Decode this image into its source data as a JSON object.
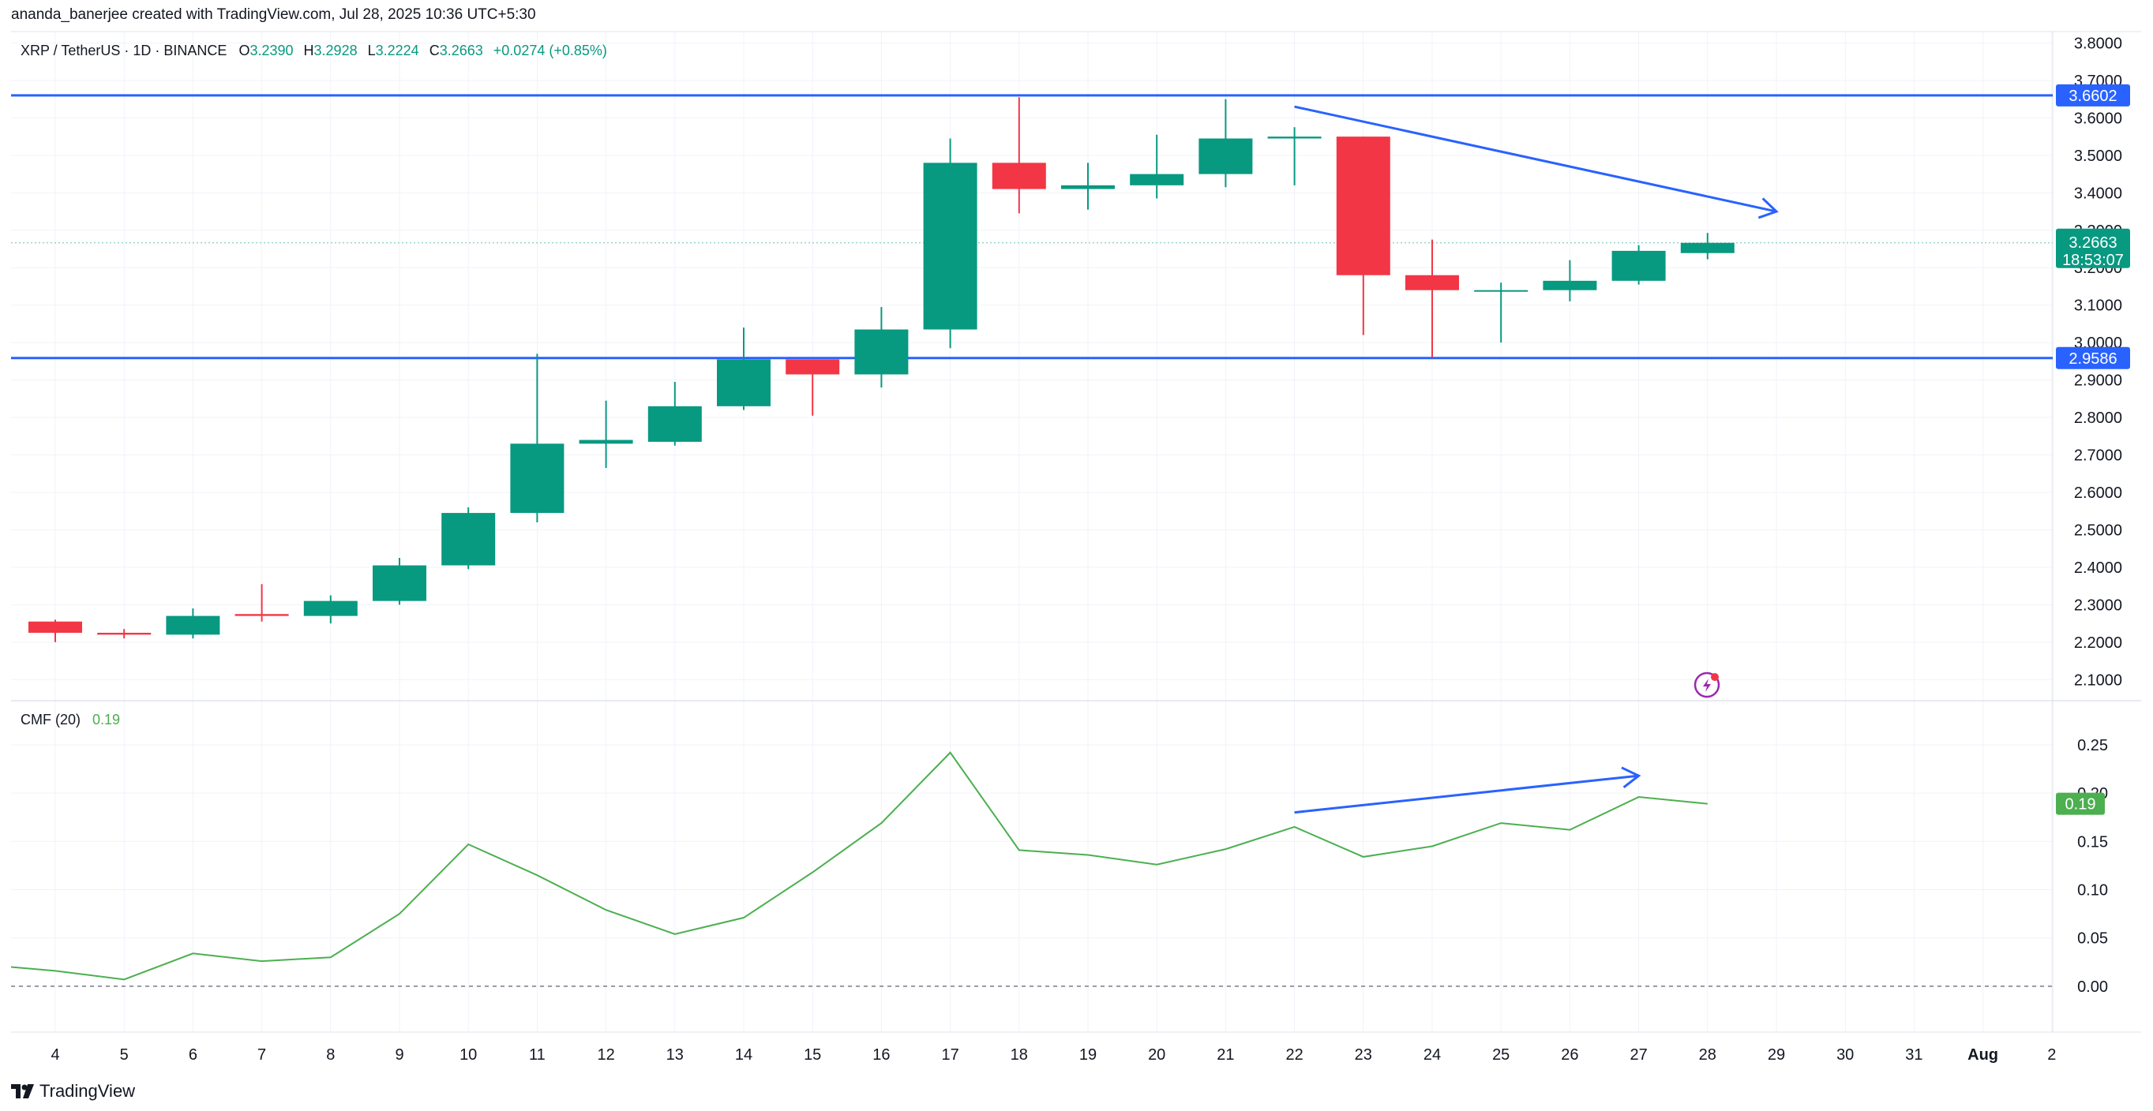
{
  "header": {
    "credit": "ananda_banerjee created with TradingView.com, Jul 28, 2025 10:36 UTC+5:30"
  },
  "legend": {
    "symbol": "XRP / TetherUS · 1D · BINANCE",
    "open_label": "O",
    "open": "3.2390",
    "high_label": "H",
    "high": "3.2928",
    "low_label": "L",
    "low": "3.2224",
    "close_label": "C",
    "close": "3.2663",
    "change": "+0.0274 (+0.85%)"
  },
  "price_axis": {
    "ticks": [
      "3.8000",
      "3.7000",
      "3.6000",
      "3.5000",
      "3.4000",
      "3.3000",
      "3.2000",
      "3.1000",
      "3.0000",
      "2.9000",
      "2.8000",
      "2.7000",
      "2.6000",
      "2.5000",
      "2.4000",
      "2.3000",
      "2.2000",
      "2.1000"
    ],
    "resistance_label": "3.6602",
    "support_label": "2.9586",
    "last_price_label": "3.2663",
    "countdown_label": "18:53:07"
  },
  "cmf": {
    "title": "CMF (20)",
    "value": "0.19",
    "axis_ticks": [
      "0.25",
      "0.20",
      "0.15",
      "0.10",
      "0.05",
      "0.00"
    ]
  },
  "time_axis": {
    "labels": [
      "4",
      "5",
      "6",
      "7",
      "8",
      "9",
      "10",
      "11",
      "12",
      "13",
      "14",
      "15",
      "16",
      "17",
      "18",
      "19",
      "20",
      "21",
      "22",
      "23",
      "24",
      "25",
      "26",
      "27",
      "28",
      "29",
      "30",
      "31",
      "Aug",
      "2"
    ]
  },
  "footer": {
    "brand": "TradingView"
  },
  "colors": {
    "up": "#089981",
    "down": "#f23645",
    "line": "#2962ff",
    "cmf": "#4caf50",
    "grid": "#f0f3fa"
  },
  "chart_data": [
    {
      "type": "candlestick",
      "title": "XRP / TetherUS · 1D · BINANCE",
      "x": [
        "4",
        "5",
        "6",
        "7",
        "8",
        "9",
        "10",
        "11",
        "12",
        "13",
        "14",
        "15",
        "16",
        "17",
        "18",
        "19",
        "20",
        "21",
        "22",
        "23",
        "24",
        "25",
        "26",
        "27",
        "28"
      ],
      "candles": [
        {
          "o": 2.255,
          "h": 2.26,
          "l": 2.2,
          "c": 2.225
        },
        {
          "o": 2.225,
          "h": 2.235,
          "l": 2.21,
          "c": 2.22
        },
        {
          "o": 2.22,
          "h": 2.29,
          "l": 2.21,
          "c": 2.27
        },
        {
          "o": 2.275,
          "h": 2.355,
          "l": 2.255,
          "c": 2.27
        },
        {
          "o": 2.27,
          "h": 2.325,
          "l": 2.25,
          "c": 2.31
        },
        {
          "o": 2.31,
          "h": 2.425,
          "l": 2.3,
          "c": 2.405
        },
        {
          "o": 2.405,
          "h": 2.56,
          "l": 2.395,
          "c": 2.545
        },
        {
          "o": 2.545,
          "h": 2.97,
          "l": 2.52,
          "c": 2.73
        },
        {
          "o": 2.73,
          "h": 2.845,
          "l": 2.665,
          "c": 2.74
        },
        {
          "o": 2.735,
          "h": 2.895,
          "l": 2.725,
          "c": 2.83
        },
        {
          "o": 2.83,
          "h": 3.04,
          "l": 2.82,
          "c": 2.955
        },
        {
          "o": 2.955,
          "h": 2.955,
          "l": 2.805,
          "c": 2.915
        },
        {
          "o": 2.915,
          "h": 3.095,
          "l": 2.88,
          "c": 3.035
        },
        {
          "o": 3.035,
          "h": 3.545,
          "l": 2.985,
          "c": 3.48
        },
        {
          "o": 3.48,
          "h": 3.655,
          "l": 3.345,
          "c": 3.41
        },
        {
          "o": 3.41,
          "h": 3.48,
          "l": 3.355,
          "c": 3.42
        },
        {
          "o": 3.42,
          "h": 3.555,
          "l": 3.385,
          "c": 3.45
        },
        {
          "o": 3.45,
          "h": 3.65,
          "l": 3.415,
          "c": 3.545
        },
        {
          "o": 3.545,
          "h": 3.575,
          "l": 3.42,
          "c": 3.55
        },
        {
          "o": 3.55,
          "h": 3.55,
          "l": 3.02,
          "c": 3.18
        },
        {
          "o": 3.18,
          "h": 3.275,
          "l": 2.96,
          "c": 3.14
        },
        {
          "o": 3.14,
          "h": 3.16,
          "l": 3.0,
          "c": 3.14
        },
        {
          "o": 3.14,
          "h": 3.22,
          "l": 3.11,
          "c": 3.165
        },
        {
          "o": 3.165,
          "h": 3.26,
          "l": 3.155,
          "c": 3.245
        },
        {
          "o": 3.239,
          "h": 3.2928,
          "l": 3.2224,
          "c": 3.2663
        }
      ],
      "ylim": [
        2.05,
        3.82
      ],
      "horizontal_levels": [
        3.6602,
        2.9586
      ],
      "trendline": {
        "from": {
          "x": "22",
          "y": 3.63
        },
        "to": {
          "x": "29",
          "y": 3.35
        }
      },
      "grid": true,
      "y_axis_position": "right"
    },
    {
      "type": "line",
      "title": "CMF (20)",
      "x": [
        "3",
        "4",
        "5",
        "6",
        "7",
        "8",
        "9",
        "10",
        "11",
        "12",
        "13",
        "14",
        "15",
        "16",
        "17",
        "18",
        "19",
        "20",
        "21",
        "22",
        "23",
        "24",
        "25",
        "26",
        "27",
        "28"
      ],
      "values": [
        0.02,
        0.016,
        0.007,
        0.034,
        0.026,
        0.03,
        0.075,
        0.147,
        0.115,
        0.079,
        0.054,
        0.071,
        0.118,
        0.169,
        0.242,
        0.141,
        0.136,
        0.126,
        0.142,
        0.165,
        0.134,
        0.145,
        0.169,
        0.162,
        0.196,
        0.189
      ],
      "ylim": [
        -0.045,
        0.29
      ],
      "zero_line": true,
      "trendline": {
        "from": {
          "x": "22",
          "y": 0.18
        },
        "to": {
          "x": "27",
          "y": 0.218
        }
      },
      "grid": true,
      "y_axis_position": "right"
    }
  ]
}
